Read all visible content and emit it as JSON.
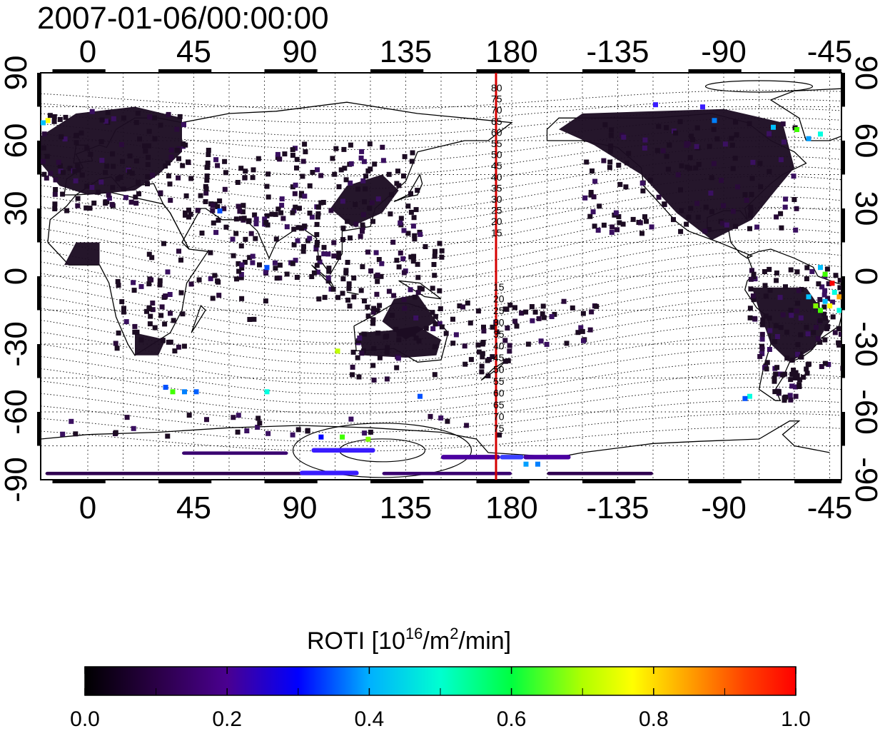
{
  "title": "2007-01-06/00:00:00",
  "map": {
    "lon_ticks": [
      "0",
      "45",
      "90",
      "135",
      "180",
      "-135",
      "-90",
      "-45"
    ],
    "lat_ticks": [
      "90",
      "60",
      "30",
      "0",
      "-30",
      "-60",
      "-90"
    ],
    "lon_range": [
      -20,
      320
    ],
    "lat_range": [
      -90,
      90
    ],
    "grid": "dotted",
    "meridian_line_lon": 180,
    "meridian_line_color": "#d40000",
    "contour_labels_north": [
      "80",
      "75",
      "70",
      "65",
      "60",
      "55",
      "50",
      "45",
      "40",
      "35",
      "30",
      "25",
      "20",
      "15"
    ],
    "contour_labels_south": [
      "15",
      "20",
      "25",
      "30",
      "35",
      "40",
      "45",
      "50",
      "55",
      "60",
      "65",
      "70",
      "75"
    ]
  },
  "colorbar": {
    "title_prefix": "ROTI  [10",
    "title_sup1": "16",
    "title_mid": "/m",
    "title_sup2": "2",
    "title_suffix": "/min]",
    "ticks": [
      "0.0",
      "0.2",
      "0.4",
      "0.6",
      "0.8",
      "1.0"
    ],
    "range": [
      0.0,
      1.0
    ],
    "colormap": [
      "#000000",
      "#300050",
      "#5a00a0",
      "#0000ff",
      "#00a0ff",
      "#00ffe0",
      "#00ff40",
      "#a0ff00",
      "#ffff00",
      "#ffa000",
      "#ff4000",
      "#ff0000"
    ]
  }
}
